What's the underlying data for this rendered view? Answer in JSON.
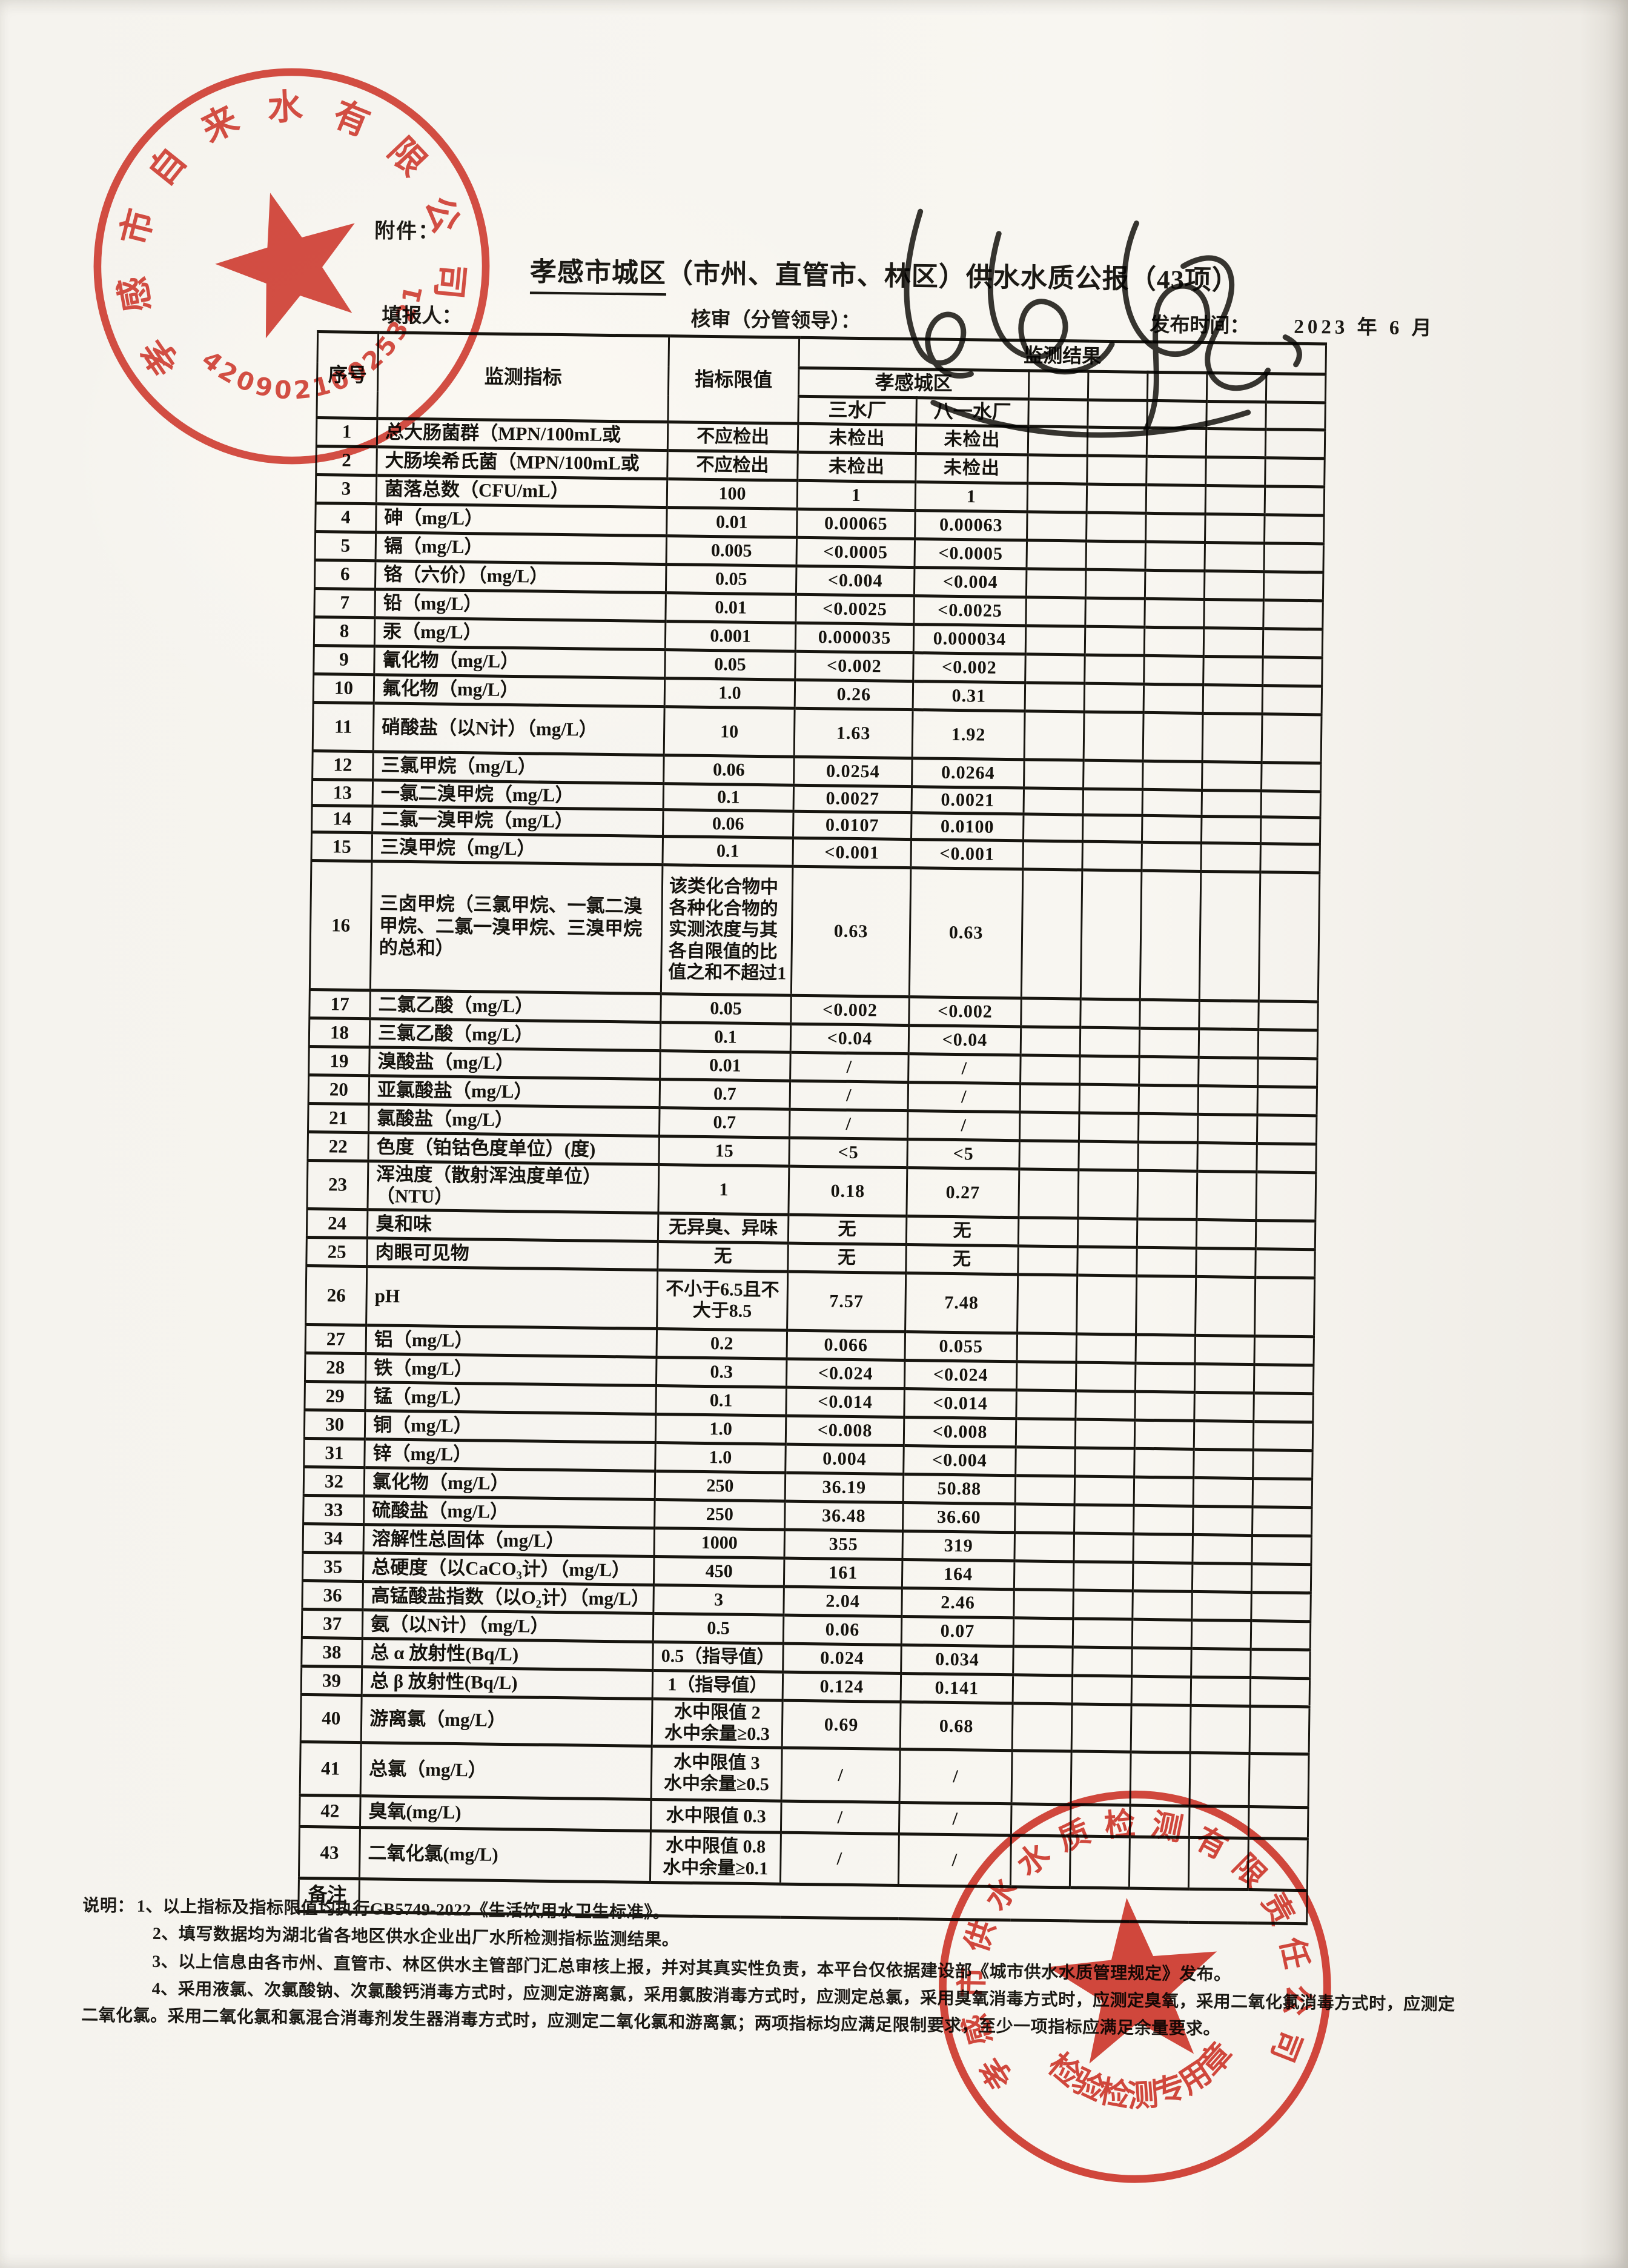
{
  "header": {
    "attachment_label": "附件：",
    "title_underline": "孝感市城区",
    "title_rest": "（市州、直管市、林区）供水水质公报（43项）",
    "filler_label": "填报人：",
    "reviewer_label": "核审（分管领导）：",
    "publish_label": "发布时间：",
    "publish_date": "2023 年 6 月"
  },
  "table": {
    "col_headers": {
      "seq": "序号",
      "indicator": "监测指标",
      "limit": "指标限值",
      "result": "监测结果",
      "district": "孝感城区",
      "plant1": "三水厂",
      "plant2": "八一水厂"
    },
    "remark_label": "备注",
    "rows": [
      {
        "no": "1",
        "indicator": "总大肠菌群（MPN/100mL或",
        "limit": "不应检出",
        "v1": "未检出",
        "v2": "未检出"
      },
      {
        "no": "2",
        "indicator": "大肠埃希氏菌（MPN/100mL或",
        "limit": "不应检出",
        "v1": "未检出",
        "v2": "未检出"
      },
      {
        "no": "3",
        "indicator": "菌落总数（CFU/mL）",
        "limit": "100",
        "v1": "1",
        "v2": "1"
      },
      {
        "no": "4",
        "indicator": "砷（mg/L）",
        "limit": "0.01",
        "v1": "0.00065",
        "v2": "0.00063"
      },
      {
        "no": "5",
        "indicator": "镉（mg/L）",
        "limit": "0.005",
        "v1": "<0.0005",
        "v2": "<0.0005"
      },
      {
        "no": "6",
        "indicator": "铬（六价）（mg/L）",
        "limit": "0.05",
        "v1": "<0.004",
        "v2": "<0.004"
      },
      {
        "no": "7",
        "indicator": "铅（mg/L）",
        "limit": "0.01",
        "v1": "<0.0025",
        "v2": "<0.0025"
      },
      {
        "no": "8",
        "indicator": "汞（mg/L）",
        "limit": "0.001",
        "v1": "0.000035",
        "v2": "0.000034"
      },
      {
        "no": "9",
        "indicator": "氰化物（mg/L）",
        "limit": "0.05",
        "v1": "<0.002",
        "v2": "<0.002"
      },
      {
        "no": "10",
        "indicator": "氟化物（mg/L）",
        "limit": "1.0",
        "v1": "0.26",
        "v2": "0.31"
      },
      {
        "no": "11",
        "indicator": "硝酸盐（以N计）（mg/L）",
        "limit": "10",
        "v1": "1.63",
        "v2": "1.92"
      },
      {
        "no": "12",
        "indicator": "三氯甲烷（mg/L）",
        "limit": "0.06",
        "v1": "0.0254",
        "v2": "0.0264"
      },
      {
        "no": "13",
        "indicator": "一氯二溴甲烷（mg/L）",
        "limit": "0.1",
        "v1": "0.0027",
        "v2": "0.0021"
      },
      {
        "no": "14",
        "indicator": "二氯一溴甲烷（mg/L）",
        "limit": "0.06",
        "v1": "0.0107",
        "v2": "0.0100"
      },
      {
        "no": "15",
        "indicator": "三溴甲烷（mg/L）",
        "limit": "0.1",
        "v1": "<0.001",
        "v2": "<0.001"
      },
      {
        "no": "16",
        "indicator": "三卤甲烷（三氯甲烷、一氯二溴甲烷、二氯一溴甲烷、三溴甲烷的总和）",
        "limit": "该类化合物中各种化合物的实测浓度与其各自限值的比值之和不超过1",
        "v1": "0.63",
        "v2": "0.63"
      },
      {
        "no": "17",
        "indicator": "二氯乙酸（mg/L）",
        "limit": "0.05",
        "v1": "<0.002",
        "v2": "<0.002"
      },
      {
        "no": "18",
        "indicator": "三氯乙酸（mg/L）",
        "limit": "0.1",
        "v1": "<0.04",
        "v2": "<0.04"
      },
      {
        "no": "19",
        "indicator": "溴酸盐（mg/L）",
        "limit": "0.01",
        "v1": "/",
        "v2": "/"
      },
      {
        "no": "20",
        "indicator": "亚氯酸盐（mg/L）",
        "limit": "0.7",
        "v1": "/",
        "v2": "/"
      },
      {
        "no": "21",
        "indicator": "氯酸盐（mg/L）",
        "limit": "0.7",
        "v1": "/",
        "v2": "/"
      },
      {
        "no": "22",
        "indicator": "色度（铂钴色度单位）(度)",
        "limit": "15",
        "v1": "<5",
        "v2": "<5"
      },
      {
        "no": "23",
        "indicator": "浑浊度（散射浑浊度单位）（NTU）",
        "limit": "1",
        "v1": "0.18",
        "v2": "0.27"
      },
      {
        "no": "24",
        "indicator": "臭和味",
        "limit": "无异臭、异味",
        "v1": "无",
        "v2": "无"
      },
      {
        "no": "25",
        "indicator": "肉眼可见物",
        "limit": "无",
        "v1": "无",
        "v2": "无"
      },
      {
        "no": "26",
        "indicator": "pH",
        "limit": "不小于6.5且不\n大于8.5",
        "v1": "7.57",
        "v2": "7.48"
      },
      {
        "no": "27",
        "indicator": "铝（mg/L）",
        "limit": "0.2",
        "v1": "0.066",
        "v2": "0.055"
      },
      {
        "no": "28",
        "indicator": "铁（mg/L）",
        "limit": "0.3",
        "v1": "<0.024",
        "v2": "<0.024"
      },
      {
        "no": "29",
        "indicator": "锰（mg/L）",
        "limit": "0.1",
        "v1": "<0.014",
        "v2": "<0.014"
      },
      {
        "no": "30",
        "indicator": "铜（mg/L）",
        "limit": "1.0",
        "v1": "<0.008",
        "v2": "<0.008"
      },
      {
        "no": "31",
        "indicator": "锌（mg/L）",
        "limit": "1.0",
        "v1": "0.004",
        "v2": "<0.004"
      },
      {
        "no": "32",
        "indicator": "氯化物（mg/L）",
        "limit": "250",
        "v1": "36.19",
        "v2": "50.88"
      },
      {
        "no": "33",
        "indicator": "硫酸盐（mg/L）",
        "limit": "250",
        "v1": "36.48",
        "v2": "36.60"
      },
      {
        "no": "34",
        "indicator": "溶解性总固体（mg/L）",
        "limit": "1000",
        "v1": "355",
        "v2": "319"
      },
      {
        "no": "35",
        "indicator": "总硬度（以CaCO₃计）（mg/L）",
        "limit": "450",
        "v1": "161",
        "v2": "164"
      },
      {
        "no": "36",
        "indicator": "高锰酸盐指数（以O₂计）（mg/L）",
        "limit": "3",
        "v1": "2.04",
        "v2": "2.46"
      },
      {
        "no": "37",
        "indicator": "氨（以N计）（mg/L）",
        "limit": "0.5",
        "v1": "0.06",
        "v2": "0.07"
      },
      {
        "no": "38",
        "indicator": "总 α 放射性(Bq/L)",
        "limit": "0.5（指导值）",
        "v1": "0.024",
        "v2": "0.034"
      },
      {
        "no": "39",
        "indicator": "总 β 放射性(Bq/L)",
        "limit": "1（指导值）",
        "v1": "0.124",
        "v2": "0.141"
      },
      {
        "no": "40",
        "indicator": "游离氯（mg/L）",
        "limit": "水中限值 2\n水中余量≥0.3",
        "v1": "0.69",
        "v2": "0.68"
      },
      {
        "no": "41",
        "indicator": "总氯（mg/L）",
        "limit": "水中限值 3\n水中余量≥0.5",
        "v1": "/",
        "v2": "/"
      },
      {
        "no": "42",
        "indicator": "臭氧(mg/L)",
        "limit": "水中限值 0.3",
        "v1": "/",
        "v2": "/"
      },
      {
        "no": "43",
        "indicator": "二氧化氯(mg/L)",
        "limit": "水中限值 0.8\n水中余量≥0.1",
        "v1": "/",
        "v2": "/"
      }
    ]
  },
  "notes": {
    "label": "说明：",
    "items": [
      "1、以上指标及指标限值均执行GB5749-2022《生活饮用水卫生标准》。",
      "2、填写数据均为湖北省各地区供水企业出厂水所检测指标监测结果。",
      "3、以上信息由各市州、直管市、林区供水主管部门汇总审核上报，并对其真实性负责，本平台仅依据建设部《城市供水水质管理规定》发布。",
      "4、采用液氯、次氯酸钠、次氯酸钙消毒方式时，应测定游离氯，采用氯胺消毒方式时，应测定总氯，采用臭氧消毒方式时，应测定臭氧，采用二氧化氯消毒方式时，应测定二氧化氯。采用二氧化氯和氯混合消毒剂发生器消毒方式时，应测定二氧化氯和游离氯；两项指标均应满足限制要求，至少一项指标应满足余量要求。"
    ]
  },
  "stamps": {
    "company_seal": {
      "name": "孝感市自来水有限公司",
      "number": "42090210025321",
      "color": "#c9281c"
    },
    "test_seal": {
      "name": "孝感市供水水质检测有限责任公司",
      "caption": "检验检测专用章",
      "color": "#c9281c"
    }
  }
}
